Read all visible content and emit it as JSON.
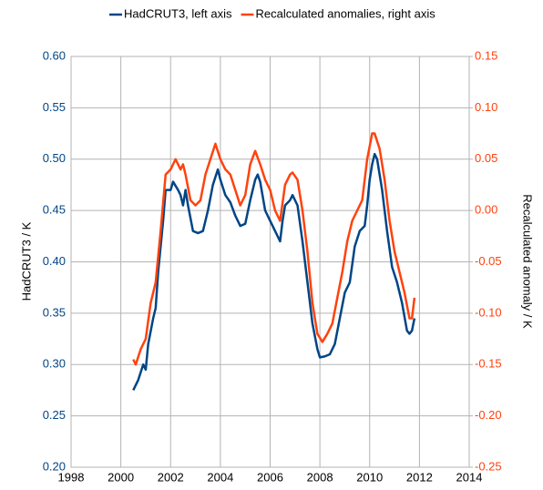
{
  "chart_data": {
    "type": "line",
    "grid": true,
    "legend": "top",
    "y_label": "HadCRUT3 / K",
    "y2_label": "Recalculated anomaly / K",
    "xlim": [
      1998,
      2014
    ],
    "xticks": [
      1998,
      2000,
      2002,
      2004,
      2006,
      2008,
      2010,
      2012,
      2014
    ],
    "ylim": [
      0.2,
      0.6
    ],
    "yticks": [
      {
        "value": 0.2,
        "label": "0.20"
      },
      {
        "value": 0.25,
        "label": "0.25"
      },
      {
        "value": 0.3,
        "label": "0.30"
      },
      {
        "value": 0.35,
        "label": "0.35"
      },
      {
        "value": 0.4,
        "label": "0.40"
      },
      {
        "value": 0.45,
        "label": "0.45"
      },
      {
        "value": 0.5,
        "label": "0.50"
      },
      {
        "value": 0.55,
        "label": "0.55"
      },
      {
        "value": 0.6,
        "label": "0.60"
      }
    ],
    "y2lim": [
      -0.25,
      0.15
    ],
    "y2ticks": [
      {
        "value": -0.25,
        "label": "-0.25"
      },
      {
        "value": -0.2,
        "label": "-0.20"
      },
      {
        "value": -0.15,
        "label": "-0.15"
      },
      {
        "value": -0.1,
        "label": "-0.10"
      },
      {
        "value": -0.05,
        "label": "-0.05"
      },
      {
        "value": 0,
        "label": "0.00"
      },
      {
        "value": 0.05,
        "label": "0.05"
      },
      {
        "value": 0.1,
        "label": "0.10"
      },
      {
        "value": 0.15,
        "label": "0.15"
      }
    ],
    "series": [
      {
        "name": "HadCRUT3, left axis",
        "color": "#004586",
        "x": [
          2000.5,
          2000.7,
          2000.9,
          2001.0,
          2001.1,
          2001.3,
          2001.4,
          2001.5,
          2001.7,
          2001.8,
          2002.0,
          2002.1,
          2002.3,
          2002.4,
          2002.5,
          2002.6,
          2002.7,
          2002.9,
          2003.1,
          2003.3,
          2003.5,
          2003.7,
          2003.9,
          2004.0,
          2004.2,
          2004.4,
          2004.6,
          2004.8,
          2005.0,
          2005.2,
          2005.4,
          2005.5,
          2005.6,
          2005.8,
          2006.0,
          2006.2,
          2006.4,
          2006.5,
          2006.6,
          2006.8,
          2006.9,
          2007.1,
          2007.3,
          2007.5,
          2007.7,
          2007.9,
          2008.0,
          2008.2,
          2008.4,
          2008.6,
          2008.8,
          2009.0,
          2009.2,
          2009.4,
          2009.6,
          2009.8,
          2009.9,
          2010.0,
          2010.1,
          2010.2,
          2010.3,
          2010.5,
          2010.7,
          2010.9,
          2011.1,
          2011.3,
          2011.5,
          2011.6,
          2011.7,
          2011.8
        ],
        "values": [
          0.275,
          0.285,
          0.3,
          0.295,
          0.32,
          0.345,
          0.355,
          0.39,
          0.44,
          0.47,
          0.47,
          0.478,
          0.47,
          0.465,
          0.455,
          0.47,
          0.455,
          0.43,
          0.428,
          0.43,
          0.45,
          0.475,
          0.49,
          0.48,
          0.465,
          0.458,
          0.445,
          0.435,
          0.437,
          0.46,
          0.48,
          0.485,
          0.478,
          0.45,
          0.44,
          0.43,
          0.42,
          0.44,
          0.455,
          0.46,
          0.465,
          0.455,
          0.42,
          0.38,
          0.34,
          0.315,
          0.307,
          0.308,
          0.31,
          0.32,
          0.345,
          0.37,
          0.38,
          0.415,
          0.43,
          0.435,
          0.455,
          0.48,
          0.495,
          0.505,
          0.5,
          0.47,
          0.43,
          0.395,
          0.38,
          0.36,
          0.333,
          0.33,
          0.333,
          0.345
        ]
      },
      {
        "name": "Recalculated anomalies, right axis",
        "color": "#ff420e",
        "axis": "y2",
        "x": [
          2000.5,
          2000.6,
          2000.8,
          2001.0,
          2001.2,
          2001.4,
          2001.6,
          2001.8,
          2002.0,
          2002.2,
          2002.4,
          2002.5,
          2002.6,
          2002.8,
          2003.0,
          2003.2,
          2003.4,
          2003.6,
          2003.8,
          2004.0,
          2004.2,
          2004.4,
          2004.6,
          2004.8,
          2005.0,
          2005.2,
          2005.4,
          2005.6,
          2005.8,
          2006.0,
          2006.2,
          2006.4,
          2006.6,
          2006.8,
          2006.9,
          2007.1,
          2007.3,
          2007.5,
          2007.7,
          2007.9,
          2008.1,
          2008.3,
          2008.5,
          2008.7,
          2008.9,
          2009.1,
          2009.3,
          2009.5,
          2009.7,
          2009.9,
          2010.1,
          2010.2,
          2010.4,
          2010.6,
          2010.8,
          2011.0,
          2011.2,
          2011.4,
          2011.6,
          2011.7,
          2011.8
        ],
        "values": [
          -0.145,
          -0.15,
          -0.135,
          -0.125,
          -0.09,
          -0.07,
          -0.02,
          0.035,
          0.04,
          0.05,
          0.04,
          0.045,
          0.035,
          0.01,
          0.005,
          0.01,
          0.035,
          0.05,
          0.065,
          0.05,
          0.04,
          0.035,
          0.02,
          0.005,
          0.015,
          0.045,
          0.058,
          0.045,
          0.03,
          0.02,
          0.0,
          -0.01,
          0.025,
          0.035,
          0.037,
          0.03,
          0.0,
          -0.04,
          -0.09,
          -0.12,
          -0.128,
          -0.12,
          -0.11,
          -0.085,
          -0.06,
          -0.03,
          -0.01,
          0.0,
          0.01,
          0.05,
          0.075,
          0.075,
          0.06,
          0.03,
          -0.01,
          -0.04,
          -0.06,
          -0.08,
          -0.105,
          -0.105,
          -0.085
        ]
      }
    ]
  }
}
